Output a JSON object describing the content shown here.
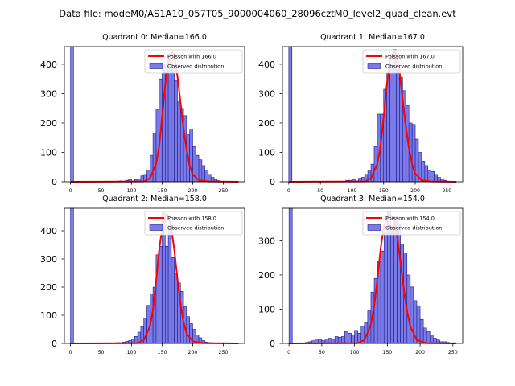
{
  "figure": {
    "suptitle": "Data file: modeM0/AS1A10_057T05_9000004060_28096cztM0_level2_quad_clean.evt"
  },
  "colors": {
    "bar_fill": "#7b7be8",
    "bar_edge": "#1a1a8c",
    "poisson_line": "#ff0000",
    "axis": "#000000"
  },
  "chart_data": [
    {
      "type": "bar",
      "title": "Quadrant 0: Median=166.0",
      "median": 166.0,
      "xlim": [
        -10,
        285
      ],
      "ylim": [
        0,
        460
      ],
      "xticks": [
        0,
        50,
        100,
        150,
        200,
        250
      ],
      "yticks": [
        0,
        100,
        200,
        300,
        400
      ],
      "bin_width": 5,
      "bins_left": [
        0,
        80,
        85,
        90,
        95,
        100,
        105,
        110,
        115,
        120,
        125,
        130,
        135,
        140,
        145,
        150,
        155,
        160,
        165,
        170,
        175,
        180,
        185,
        190,
        195,
        200,
        205,
        210,
        215,
        220,
        225,
        230,
        235,
        240
      ],
      "counts": [
        460,
        3,
        2,
        5,
        8,
        3,
        8,
        10,
        20,
        25,
        40,
        90,
        165,
        245,
        350,
        400,
        375,
        435,
        390,
        345,
        275,
        250,
        225,
        160,
        180,
        120,
        90,
        75,
        55,
        40,
        25,
        15,
        8,
        4
      ],
      "poisson_mean": 166.0,
      "poisson_x": [
        0,
        120,
        130,
        140,
        145,
        150,
        155,
        160,
        163,
        166,
        169,
        172,
        175,
        180,
        185,
        190,
        195,
        200,
        210,
        225,
        275
      ],
      "poisson_y": [
        0,
        1,
        12,
        60,
        120,
        220,
        330,
        410,
        430,
        440,
        430,
        400,
        360,
        270,
        180,
        110,
        55,
        25,
        5,
        1,
        0
      ],
      "legend": [
        "Poisson with 166.0",
        "Observed distribution"
      ]
    },
    {
      "type": "bar",
      "title": "Quadrant 1: Median=167.0",
      "median": 167.0,
      "xlim": [
        -10,
        275
      ],
      "ylim": [
        0,
        460
      ],
      "xticks": [
        0,
        50,
        100,
        150,
        200,
        250
      ],
      "yticks": [
        0,
        100,
        200,
        300,
        400
      ],
      "bin_width": 5,
      "bins_left": [
        0,
        90,
        95,
        100,
        105,
        110,
        115,
        120,
        125,
        130,
        135,
        140,
        145,
        150,
        155,
        160,
        165,
        170,
        175,
        180,
        185,
        190,
        195,
        200,
        205,
        210,
        215,
        220,
        225,
        230,
        235,
        240,
        245
      ],
      "counts": [
        460,
        5,
        5,
        8,
        3,
        12,
        15,
        25,
        40,
        60,
        120,
        230,
        230,
        315,
        375,
        400,
        450,
        380,
        355,
        310,
        260,
        200,
        195,
        145,
        100,
        70,
        55,
        40,
        35,
        25,
        15,
        10,
        5
      ],
      "poisson_mean": 167.0,
      "poisson_x": [
        0,
        120,
        130,
        140,
        145,
        150,
        155,
        160,
        164,
        167,
        170,
        173,
        176,
        180,
        185,
        190,
        195,
        200,
        210,
        225,
        265
      ],
      "poisson_y": [
        0,
        1,
        12,
        60,
        120,
        220,
        330,
        410,
        432,
        440,
        432,
        405,
        360,
        280,
        190,
        115,
        60,
        28,
        5,
        1,
        0
      ],
      "legend": [
        "Poisson with 167.0",
        "Observed distribution"
      ]
    },
    {
      "type": "bar",
      "title": "Quadrant 2: Median=158.0",
      "median": 158.0,
      "xlim": [
        -10,
        285
      ],
      "ylim": [
        0,
        480
      ],
      "xticks": [
        0,
        50,
        100,
        150,
        200,
        250
      ],
      "yticks": [
        0,
        100,
        200,
        300,
        400
      ],
      "bin_width": 5,
      "bins_left": [
        0,
        75,
        80,
        85,
        90,
        95,
        100,
        105,
        110,
        115,
        120,
        125,
        130,
        135,
        140,
        145,
        150,
        155,
        160,
        165,
        170,
        175,
        180,
        185,
        190,
        195,
        200,
        205,
        210,
        215,
        220,
        225
      ],
      "counts": [
        480,
        3,
        2,
        5,
        8,
        10,
        15,
        25,
        40,
        60,
        90,
        135,
        175,
        200,
        315,
        345,
        465,
        345,
        420,
        305,
        250,
        215,
        185,
        130,
        95,
        70,
        50,
        30,
        20,
        10,
        5,
        3
      ],
      "poisson_mean": 158.0,
      "poisson_x": [
        0,
        110,
        120,
        130,
        135,
        140,
        145,
        150,
        155,
        158,
        161,
        165,
        170,
        175,
        180,
        185,
        190,
        200,
        215,
        275
      ],
      "poisson_y": [
        0,
        1,
        12,
        60,
        120,
        220,
        330,
        410,
        450,
        460,
        450,
        410,
        330,
        230,
        140,
        75,
        35,
        8,
        1,
        0
      ],
      "legend": [
        "Poisson with 158.0",
        "Observed distribution"
      ]
    },
    {
      "type": "bar",
      "title": "Quadrant 3: Median=154.0",
      "median": 154.0,
      "xlim": [
        -10,
        265
      ],
      "ylim": [
        0,
        395
      ],
      "xticks": [
        0,
        50,
        100,
        150,
        200,
        250
      ],
      "yticks": [
        0,
        100,
        200,
        300
      ],
      "bin_width": 5,
      "bins_left": [
        0,
        25,
        30,
        35,
        40,
        45,
        50,
        55,
        60,
        65,
        70,
        75,
        80,
        85,
        90,
        95,
        100,
        105,
        110,
        115,
        120,
        125,
        130,
        135,
        140,
        145,
        150,
        155,
        160,
        165,
        170,
        175,
        180,
        185,
        190,
        195,
        200,
        205,
        210,
        215,
        220,
        225,
        230,
        235,
        240,
        250
      ],
      "counts": [
        395,
        3,
        5,
        8,
        10,
        12,
        8,
        10,
        15,
        12,
        20,
        18,
        20,
        35,
        30,
        25,
        38,
        30,
        50,
        60,
        95,
        150,
        190,
        240,
        270,
        325,
        385,
        340,
        370,
        350,
        290,
        265,
        200,
        165,
        125,
        110,
        70,
        45,
        35,
        25,
        15,
        10,
        5,
        5,
        3,
        2
      ],
      "poisson_mean": 154.0,
      "poisson_x": [
        0,
        105,
        115,
        125,
        130,
        135,
        140,
        145,
        150,
        154,
        158,
        162,
        166,
        170,
        175,
        180,
        185,
        195,
        210,
        255
      ],
      "poisson_y": [
        0,
        1,
        10,
        55,
        110,
        190,
        280,
        345,
        370,
        375,
        370,
        345,
        300,
        240,
        160,
        95,
        50,
        10,
        1,
        0
      ],
      "legend": [
        "Poisson with 154.0",
        "Observed distribution"
      ]
    }
  ]
}
